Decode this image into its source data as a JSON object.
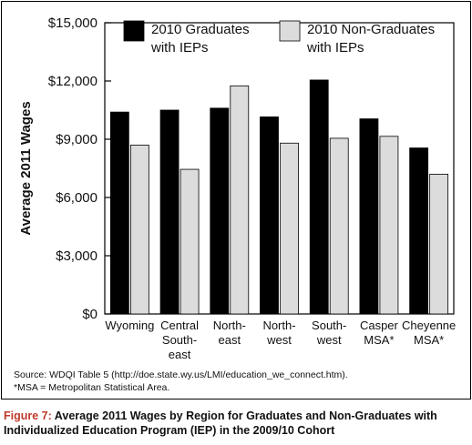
{
  "chart_data": {
    "type": "bar",
    "title": "",
    "ylabel": "Average 2011 Wages",
    "xlabel": "",
    "ylim": [
      0,
      15000
    ],
    "y_ticks": [
      "$0",
      "$3,000",
      "$6,000",
      "$9,000",
      "$12,000",
      "$15,000"
    ],
    "y_tick_values": [
      0,
      3000,
      6000,
      9000,
      12000,
      15000
    ],
    "categories": [
      [
        "Wyoming"
      ],
      [
        "Central",
        "South-",
        "east"
      ],
      [
        "North-",
        "east"
      ],
      [
        "North-",
        "west"
      ],
      [
        "South-",
        "west"
      ],
      [
        "Casper",
        "MSA*"
      ],
      [
        "Cheyenne",
        "MSA*"
      ]
    ],
    "series": [
      {
        "name": "2010 Graduates with IEPs",
        "name_lines": [
          "2010 Graduates",
          "with IEPs"
        ],
        "color": "#000000",
        "values": [
          10400,
          10500,
          10600,
          10150,
          12050,
          10050,
          8550
        ]
      },
      {
        "name": "2010 Non-Graduates with IEPs",
        "name_lines": [
          "2010 Non-Graduates",
          "with IEPs"
        ],
        "color": "#dcdcdc",
        "values": [
          8700,
          7450,
          11750,
          8800,
          9050,
          9150,
          7200
        ]
      }
    ],
    "legend_position": "top",
    "grid": false
  },
  "source_line1": "Source: WDQI Table 5 (http://doe.state.wy.us/LMI/education_we_connect.htm).",
  "source_line2": "*MSA = Metropolitan Statistical Area.",
  "caption_label": "Figure 7:",
  "caption_text": " Average 2011 Wages by Region for Graduates and Non-Graduates with Individualized Education Program (IEP) in the 2009/10 Cohort"
}
